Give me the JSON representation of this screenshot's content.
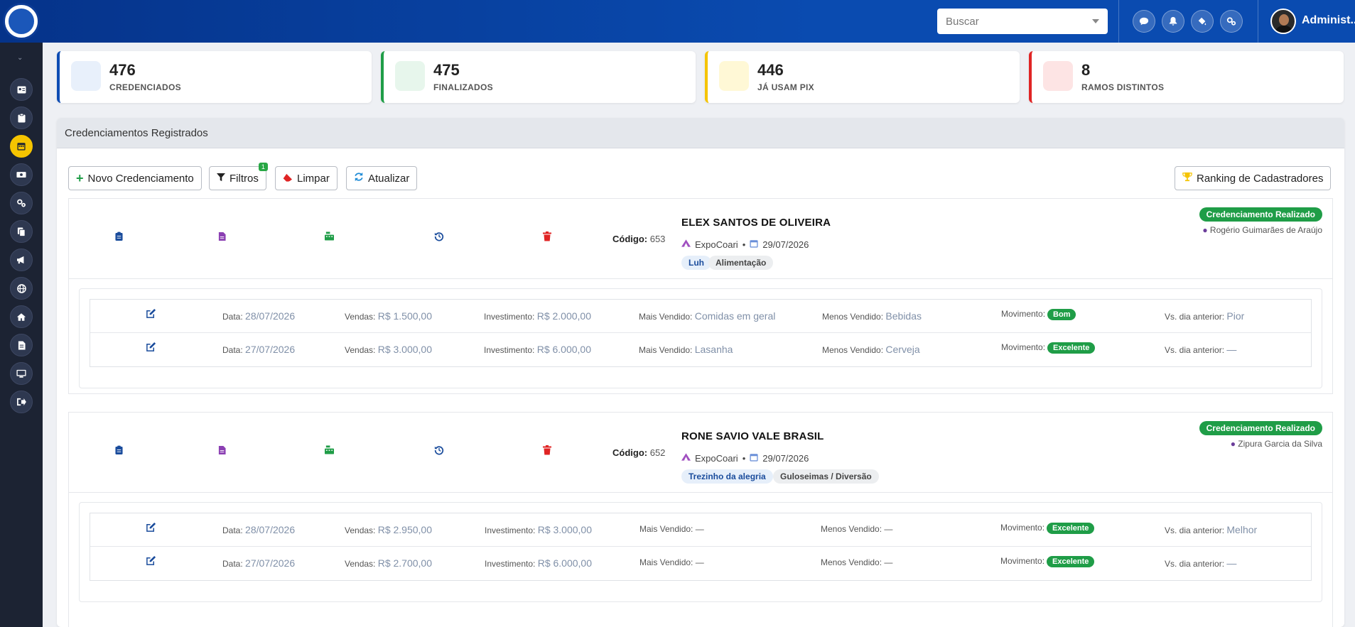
{
  "header": {
    "search_placeholder": "Buscar",
    "username": "Administ...",
    "icons": [
      "chat-icon",
      "bell-icon",
      "paint-bucket-icon",
      "cogs-icon"
    ]
  },
  "sidebar": {
    "items": [
      "id-card-icon",
      "clipboard-icon",
      "calendar-icon",
      "money-icon",
      "cogs-icon",
      "copy-icon",
      "megaphone-icon",
      "globe-icon",
      "home-icon",
      "file-icon",
      "desktop-icon",
      "sign-out-icon"
    ],
    "active_index": 2
  },
  "stats": [
    {
      "value": "476",
      "label": "CREDENCIADOS",
      "color": "#0d4cb3",
      "bg": "#e8f0fb"
    },
    {
      "value": "475",
      "label": "FINALIZADOS",
      "color": "#1f9d47",
      "bg": "#e7f6ec"
    },
    {
      "value": "446",
      "label": "JÁ USAM PIX",
      "color": "#f5c400",
      "bg": "#fff8d6"
    },
    {
      "value": "8",
      "label": "RAMOS DISTINTOS",
      "color": "#e02424",
      "bg": "#fde4e4"
    }
  ],
  "panel": {
    "title": "Credenciamentos Registrados"
  },
  "toolbar": {
    "novo": "Novo Credenciamento",
    "filtros": "Filtros",
    "filtros_count": "1",
    "limpar": "Limpar",
    "atualizar": "Atualizar",
    "ranking": "Ranking de Cadastradores"
  },
  "labels": {
    "codigo": "Código:",
    "data": "Data:",
    "vendas": "Vendas:",
    "investimento": "Investimento:",
    "mais_vendido": "Mais Vendido:",
    "menos_vendido": "Menos Vendido:",
    "movimento": "Movimento:",
    "vs_dia": "Vs. dia anterior:",
    "meta_sep": "•"
  },
  "records": [
    {
      "codigo": "653",
      "name": "ELEX SANTOS DE OLIVEIRA",
      "event": "ExpoCoari",
      "date": "29/07/2026",
      "tag1": "Luh",
      "tag2": "Alimentação",
      "status": "Credenciamento Realizado",
      "registrar": "Rogério Guimarães de Araújo",
      "entries": [
        {
          "data": "28/07/2026",
          "vendas": "R$ 1.500,00",
          "investimento": "R$ 2.000,00",
          "mais": "Comidas em geral",
          "menos": "Bebidas",
          "movimento": "Bom",
          "vs": "Pior"
        },
        {
          "data": "27/07/2026",
          "vendas": "R$ 3.000,00",
          "investimento": "R$ 6.000,00",
          "mais": "Lasanha",
          "menos": "Cerveja",
          "movimento": "Excelente",
          "vs": "—"
        }
      ]
    },
    {
      "codigo": "652",
      "name": "RONE SAVIO VALE BRASIL",
      "event": "ExpoCoari",
      "date": "29/07/2026",
      "tag1": "Trezinho da alegria",
      "tag2": "Guloseimas / Diversão",
      "status": "Credenciamento Realizado",
      "registrar": "Zipura Garcia da Silva",
      "entries": [
        {
          "data": "28/07/2026",
          "vendas": "R$ 2.950,00",
          "investimento": "R$ 3.000,00",
          "mais": "—",
          "menos": "—",
          "movimento": "Excelente",
          "vs": "Melhor"
        },
        {
          "data": "27/07/2026",
          "vendas": "R$ 2.700,00",
          "investimento": "R$ 6.000,00",
          "mais": "—",
          "menos": "—",
          "movimento": "Excelente",
          "vs": "—"
        }
      ]
    }
  ]
}
